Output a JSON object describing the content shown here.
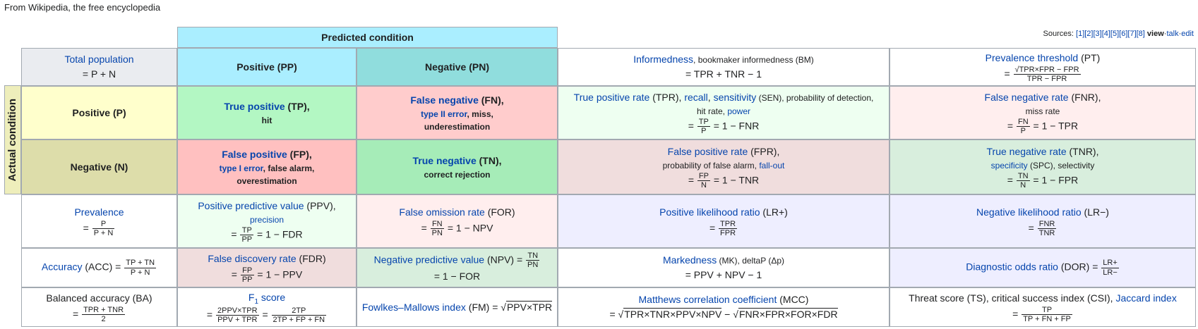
{
  "tagline": "From Wikipedia, the free encyclopedia",
  "sources": {
    "label": "Sources:",
    "refs": "[1][2][3][4][5][6][7][8]",
    "view": "view",
    "sep1": "·",
    "talk": "talk",
    "sep2": "·",
    "edit": "edit"
  },
  "headers": {
    "predicted_condition": "Predicted condition",
    "actual_condition": "Actual condition",
    "total_population_title": "Total population",
    "total_population_formula": "= P + N",
    "positive_pp": "Positive (PP)",
    "negative_pn": "Negative (PN)",
    "positive_p": "Positive (P)",
    "negative_n": "Negative (N)"
  },
  "cells": {
    "tp_title": "True positive",
    "tp_abbr": " (TP),",
    "tp_sub": "hit",
    "fn_title": "False negative",
    "fn_abbr": " (FN),",
    "fn_sub_link": "type II error",
    "fn_sub_rest": ", miss,",
    "fn_sub2": "underestimation",
    "fp_title": "False positive",
    "fp_abbr": " (FP),",
    "fp_sub_link": "type I error",
    "fp_sub_rest": ", false alarm,",
    "fp_sub2": "overestimation",
    "tn_title": "True negative",
    "tn_abbr": " (TN),",
    "tn_sub": "correct rejection",
    "bm_title": "Informedness",
    "bm_rest": ", bookmaker informedness (BM)",
    "bm_formula": "= TPR + TNR − 1",
    "pt_title": "Prevalence threshold",
    "pt_abbr": " (PT)",
    "pt_eq": "=",
    "pt_num": "√TPR×FPR − FPR",
    "pt_den": "TPR − FPR",
    "tpr_title": "True positive rate",
    "tpr_abbr": " (TPR), ",
    "tpr_recall": "recall",
    "tpr_comma": ", ",
    "tpr_sensitivity": "sensitivity",
    "tpr_rest": " (SEN), probability of detection,",
    "tpr_line2_a": "hit rate, ",
    "tpr_power": "power",
    "tpr_eq": "=",
    "tpr_num": "TP",
    "tpr_den": "P",
    "tpr_tail": "= 1 − FNR",
    "fnr_title": "False negative rate",
    "fnr_abbr": " (FNR),",
    "fnr_sub": "miss rate",
    "fnr_eq": "=",
    "fnr_num": "FN",
    "fnr_den": "P",
    "fnr_tail": "= 1 − TPR",
    "fpr_title": "False positive rate",
    "fpr_abbr": " (FPR),",
    "fpr_sub_a": "probability of false alarm, ",
    "fpr_fallout": "fall-out",
    "fpr_eq": "=",
    "fpr_num": "FP",
    "fpr_den": "N",
    "fpr_tail": "= 1 − TNR",
    "tnr_title": "True negative rate",
    "tnr_abbr": " (TNR),",
    "tnr_spec": "specificity",
    "tnr_rest": " (SPC), selectivity",
    "tnr_eq": "=",
    "tnr_num": "TN",
    "tnr_den": "N",
    "tnr_tail": "= 1 − FPR",
    "prev_title": "Prevalence",
    "prev_eq": "=",
    "prev_num": "P",
    "prev_den": "P + N",
    "ppv_title": "Positive predictive value",
    "ppv_abbr": " (PPV),",
    "ppv_precision": "precision",
    "ppv_eq": "=",
    "ppv_num": "TP",
    "ppv_den": "PP",
    "ppv_tail": "= 1 − FDR",
    "for_title": "False omission rate",
    "for_abbr": " (FOR)",
    "for_eq": "=",
    "for_num": "FN",
    "for_den": "PN",
    "for_tail": "= 1 − NPV",
    "lrp_title": "Positive likelihood ratio",
    "lrp_abbr": " (LR+)",
    "lrp_eq": "=",
    "lrp_num": "TPR",
    "lrp_den": "FPR",
    "lrn_title": "Negative likelihood ratio",
    "lrn_abbr": " (LR−)",
    "lrn_eq": "=",
    "lrn_num": "FNR",
    "lrn_den": "TNR",
    "acc_title": "Accuracy",
    "acc_abbr": " (ACC) =",
    "acc_num": "TP + TN",
    "acc_den": "P + N",
    "fdr_title": "False discovery rate",
    "fdr_abbr": " (FDR)",
    "fdr_eq": "=",
    "fdr_num": "FP",
    "fdr_den": "PP",
    "fdr_tail": "= 1 − PPV",
    "npv_title": "Negative predictive value",
    "npv_abbr": " (NPV) =",
    "npv_num": "TN",
    "npv_den": "PN",
    "npv_tail": "= 1 − FOR",
    "mk_title": "Markedness",
    "mk_rest": " (MK), deltaP (Δp)",
    "mk_formula": "= PPV + NPV − 1",
    "dor_title": "Diagnostic odds ratio",
    "dor_abbr": " (DOR) =",
    "dor_num": "LR+",
    "dor_den": "LR−",
    "ba_title": "Balanced accuracy (BA)",
    "ba_eq": "=",
    "ba_num": "TPR + TNR",
    "ba_den": "2",
    "f1_title_a": "F",
    "f1_sub": "1",
    "f1_title_b": " score",
    "f1_eq": "=",
    "f1_num": "2PPV×TPR",
    "f1_den": "PPV + TPR",
    "f1_eq2": "=",
    "f1_num2": "2TP",
    "f1_den2": "2TP + FP + FN",
    "fm_title": "Fowlkes–Mallows index",
    "fm_abbr": " (FM) = ",
    "fm_sqrt": "√",
    "fm_radicand": "PPV×TPR",
    "mcc_title": "Matthews correlation coefficient",
    "mcc_abbr": " (MCC)",
    "mcc_eq": "= √",
    "mcc_rad1": "TPR×TNR×PPV×NPV",
    "mcc_minus": " − √",
    "mcc_rad2": "FNR×FPR×FOR×FDR",
    "ts_title_a": "Threat score (TS), critical success index (CSI), ",
    "ts_jaccard": "Jaccard index",
    "ts_eq": "=",
    "ts_num": "TP",
    "ts_den": "TP + FN + FP"
  }
}
